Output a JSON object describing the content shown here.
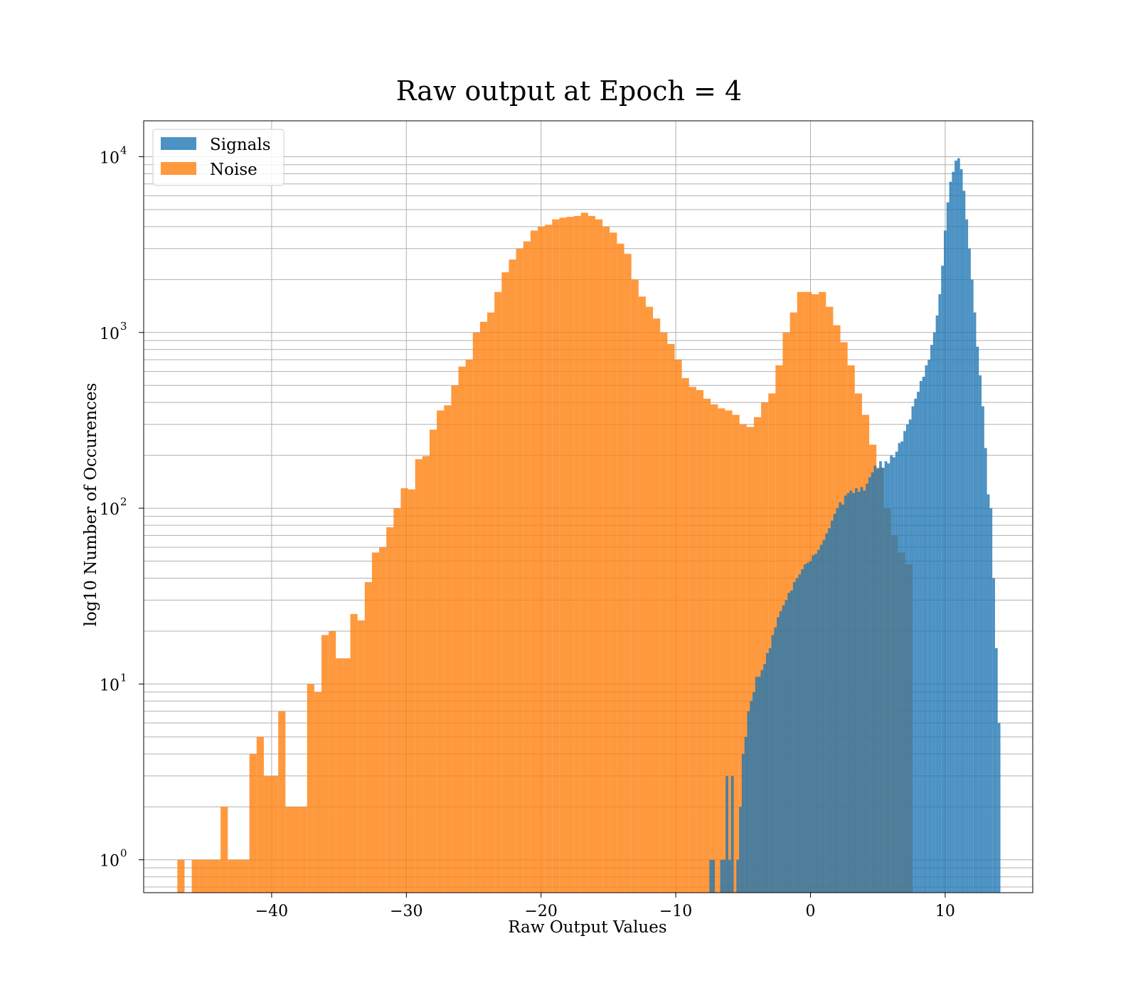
{
  "chart_data": {
    "type": "bar",
    "title": "Raw output at Epoch = 4",
    "xlabel": "Raw Output Values",
    "ylabel": "log10 Number of Occurences",
    "xlim": [
      -49.5,
      16.5
    ],
    "ylim": [
      0.65,
      16000
    ],
    "yscale": "log",
    "grid": true,
    "legend_position": "top-left",
    "x_ticks": [
      -40,
      -30,
      -20,
      -10,
      0,
      10
    ],
    "x_tick_labels": [
      "−40",
      "−30",
      "−20",
      "−10",
      "0",
      "10"
    ],
    "y_ticks": [
      1,
      10,
      100,
      1000,
      10000
    ],
    "y_tick_labels": [
      {
        "base": "10",
        "exp": "0"
      },
      {
        "base": "10",
        "exp": "1"
      },
      {
        "base": "10",
        "exp": "2"
      },
      {
        "base": "10",
        "exp": "3"
      },
      {
        "base": "10",
        "exp": "4"
      }
    ],
    "colors": {
      "Signals": "#1f77b4",
      "Noise": "#ff7f0e"
    },
    "series": [
      {
        "name": "Noise",
        "bin_start": -47.0,
        "bin_width": 0.535,
        "values": [
          1,
          0,
          1,
          1,
          1,
          1,
          2,
          1,
          1,
          1,
          4,
          5,
          3,
          3,
          7,
          2,
          2,
          2,
          10,
          9,
          19,
          20,
          14,
          14,
          25,
          23,
          38,
          56,
          60,
          78,
          100,
          130,
          128,
          190,
          198,
          280,
          360,
          385,
          500,
          640,
          700,
          1000,
          1150,
          1300,
          1700,
          2200,
          2600,
          3000,
          3300,
          3800,
          4000,
          4100,
          4400,
          4500,
          4550,
          4600,
          4800,
          4600,
          4400,
          4000,
          3700,
          3200,
          2800,
          2000,
          1600,
          1400,
          1200,
          1000,
          860,
          700,
          550,
          490,
          470,
          420,
          390,
          370,
          360,
          340,
          300,
          290,
          330,
          400,
          450,
          650,
          1000,
          1300,
          1700,
          1700,
          1650,
          1700,
          1400,
          1100,
          880,
          650,
          450,
          340,
          230,
          170,
          100,
          70,
          56,
          48
        ],
        "opacity": 0.8
      },
      {
        "name": "Signals",
        "bin_start": -7.5,
        "bin_width": 0.2,
        "values": [
          1,
          1,
          0,
          0,
          1,
          1,
          3,
          1,
          3,
          0,
          1,
          2,
          4,
          5,
          7,
          8,
          9,
          11,
          11,
          12,
          13,
          15,
          16,
          19,
          21,
          24,
          26,
          28,
          30,
          33,
          34,
          38,
          40,
          42,
          45,
          48,
          49,
          50,
          54,
          55,
          58,
          62,
          66,
          72,
          77,
          85,
          93,
          100,
          108,
          105,
          118,
          122,
          126,
          122,
          130,
          124,
          132,
          126,
          138,
          150,
          160,
          175,
          168,
          185,
          170,
          185,
          180,
          200,
          195,
          210,
          235,
          240,
          275,
          300,
          320,
          380,
          420,
          460,
          530,
          560,
          650,
          700,
          850,
          1000,
          1250,
          1650,
          2400,
          3800,
          5500,
          7200,
          8200,
          9500,
          9800,
          8500,
          6400,
          4400,
          3000,
          2000,
          1300,
          830,
          570,
          380,
          220,
          120,
          100,
          40,
          16,
          6
        ]
      }
    ]
  }
}
